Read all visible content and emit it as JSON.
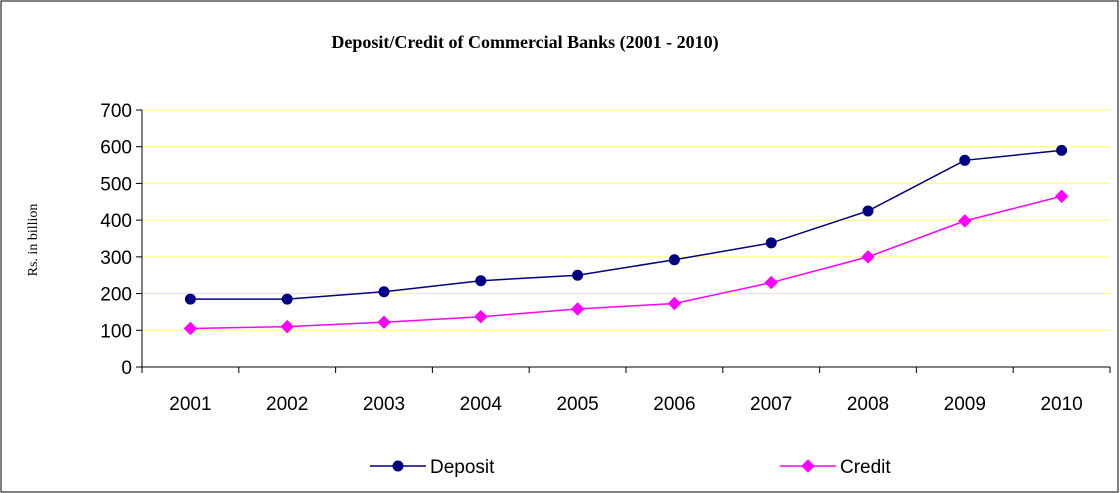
{
  "chart_data": {
    "type": "line",
    "title": "Deposit/Credit of Commercial Banks (2001 - 2010)",
    "xlabel": "",
    "ylabel": "Rs. in billion",
    "ylim": [
      0,
      700
    ],
    "yticks": [
      0,
      100,
      200,
      300,
      400,
      500,
      600,
      700
    ],
    "categories": [
      "2001",
      "2002",
      "2003",
      "2004",
      "2005",
      "2006",
      "2007",
      "2008",
      "2009",
      "2010"
    ],
    "series": [
      {
        "name": "Deposit",
        "color": "#000080",
        "marker": "circle",
        "values": [
          185,
          185,
          205,
          235,
          250,
          292,
          338,
          425,
          563,
          590
        ]
      },
      {
        "name": "Credit",
        "color": "#FF00FF",
        "marker": "diamond",
        "values": [
          105,
          110,
          122,
          137,
          158,
          173,
          230,
          300,
          398,
          465
        ]
      }
    ],
    "grid": true,
    "grid_color": "#FFFF66",
    "legend_position": "bottom"
  }
}
